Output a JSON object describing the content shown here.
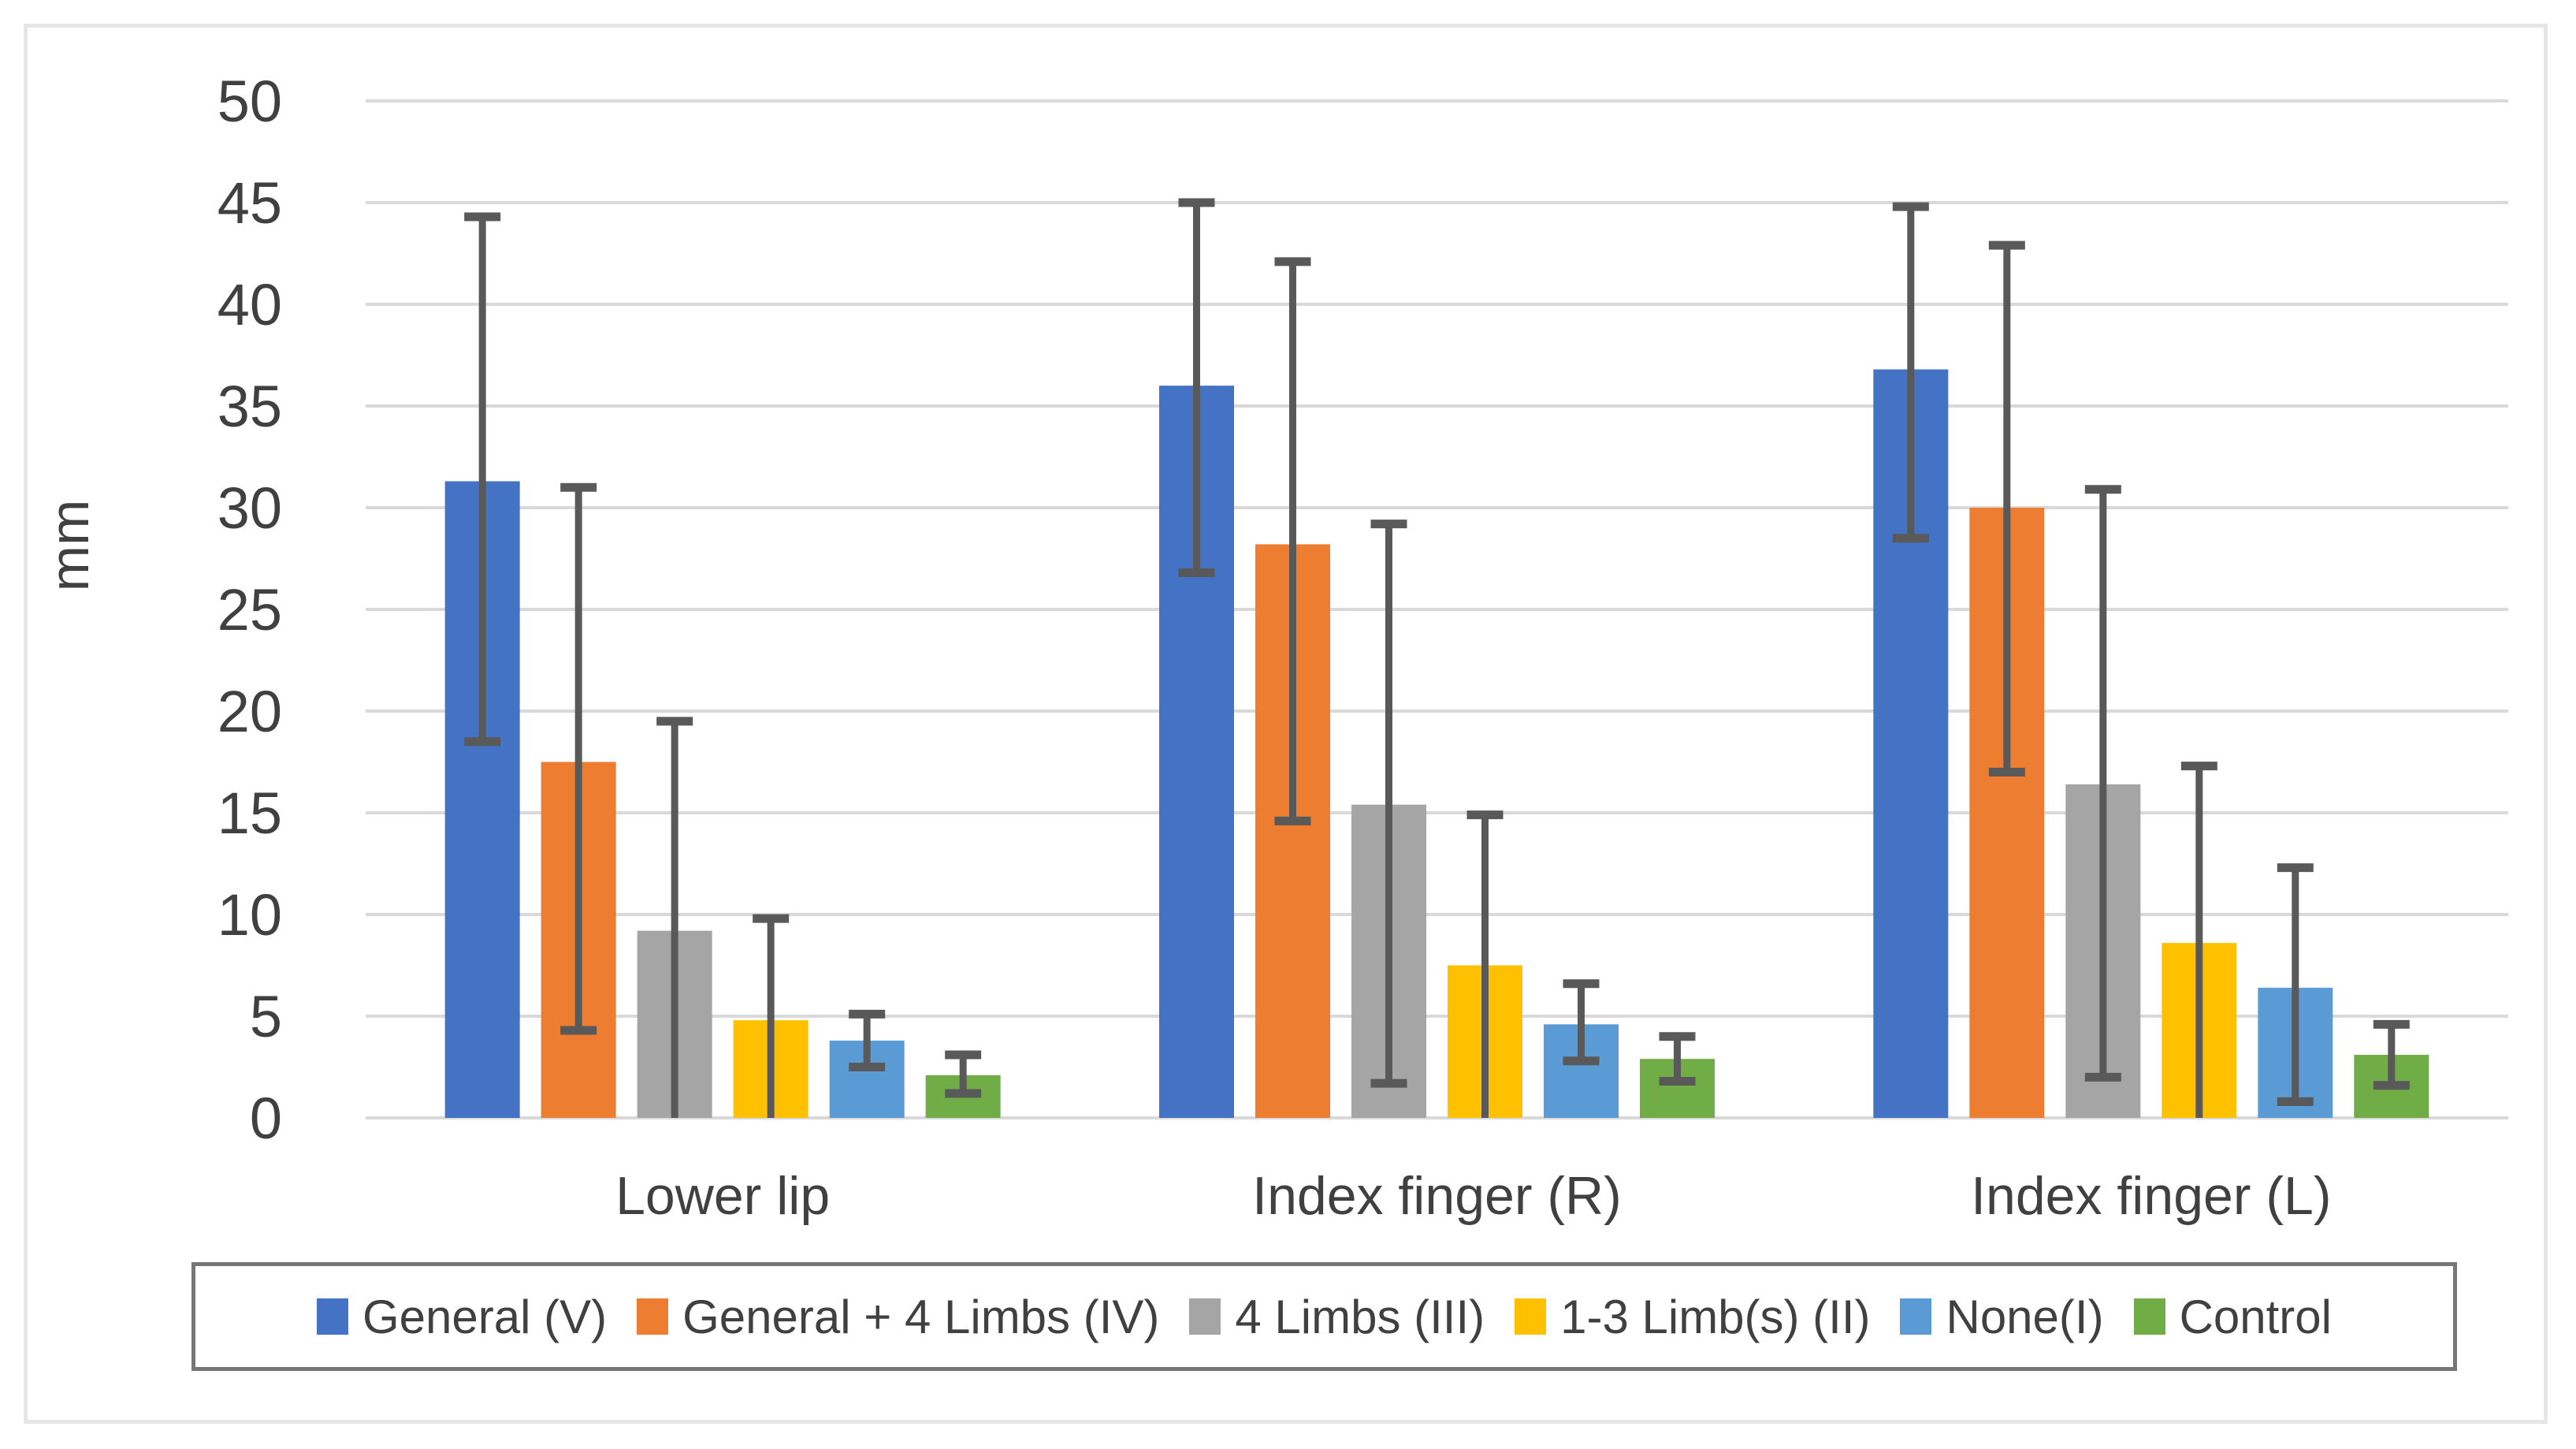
{
  "chart_data": {
    "type": "bar",
    "title": "",
    "ylabel": "mm",
    "xlabel": "",
    "ylim": [
      0,
      50
    ],
    "ytick_step": 5,
    "grid": true,
    "legend_position": "bottom",
    "categories": [
      "Lower lip",
      "Index finger (R)",
      "Index finger (L)"
    ],
    "series": [
      {
        "name": "General (V)",
        "color": "#4472C4",
        "values": [
          31.3,
          36.0,
          36.8
        ],
        "error_low": [
          18.5,
          26.8,
          28.5
        ],
        "error_high": [
          44.3,
          45.0,
          44.8
        ]
      },
      {
        "name": "General + 4 Limbs (IV)",
        "color": "#ED7D31",
        "values": [
          17.5,
          28.2,
          30.0
        ],
        "error_low": [
          4.3,
          14.6,
          17.0
        ],
        "error_high": [
          31.0,
          42.1,
          42.9
        ]
      },
      {
        "name": "4 Limbs (III)",
        "color": "#A5A5A5",
        "values": [
          9.2,
          15.4,
          16.4
        ],
        "error_low": [
          -1.0,
          1.7,
          2.0
        ],
        "error_high": [
          19.5,
          29.2,
          30.9
        ]
      },
      {
        "name": "1-3 Limb(s) (II)",
        "color": "#FFC000",
        "values": [
          4.8,
          7.5,
          8.6
        ],
        "error_low": [
          -0.2,
          -0.3,
          -0.4
        ],
        "error_high": [
          9.8,
          14.9,
          17.3
        ]
      },
      {
        "name": "None(I)",
        "color": "#5B9BD5",
        "values": [
          3.8,
          4.6,
          6.4
        ],
        "error_low": [
          2.5,
          2.8,
          0.8
        ],
        "error_high": [
          5.1,
          6.6,
          12.3
        ]
      },
      {
        "name": "Control",
        "color": "#70AD47",
        "values": [
          2.1,
          2.9,
          3.1
        ],
        "error_low": [
          1.2,
          1.8,
          1.6
        ],
        "error_high": [
          3.1,
          4.0,
          4.6
        ]
      }
    ],
    "colors": {
      "gridline": "#D9D9D9",
      "axis_text": "#404040",
      "error_bar": "#595959",
      "legend_border": "#767676",
      "frame_border": "#E6E6E6",
      "background": "#FFFFFF"
    }
  }
}
